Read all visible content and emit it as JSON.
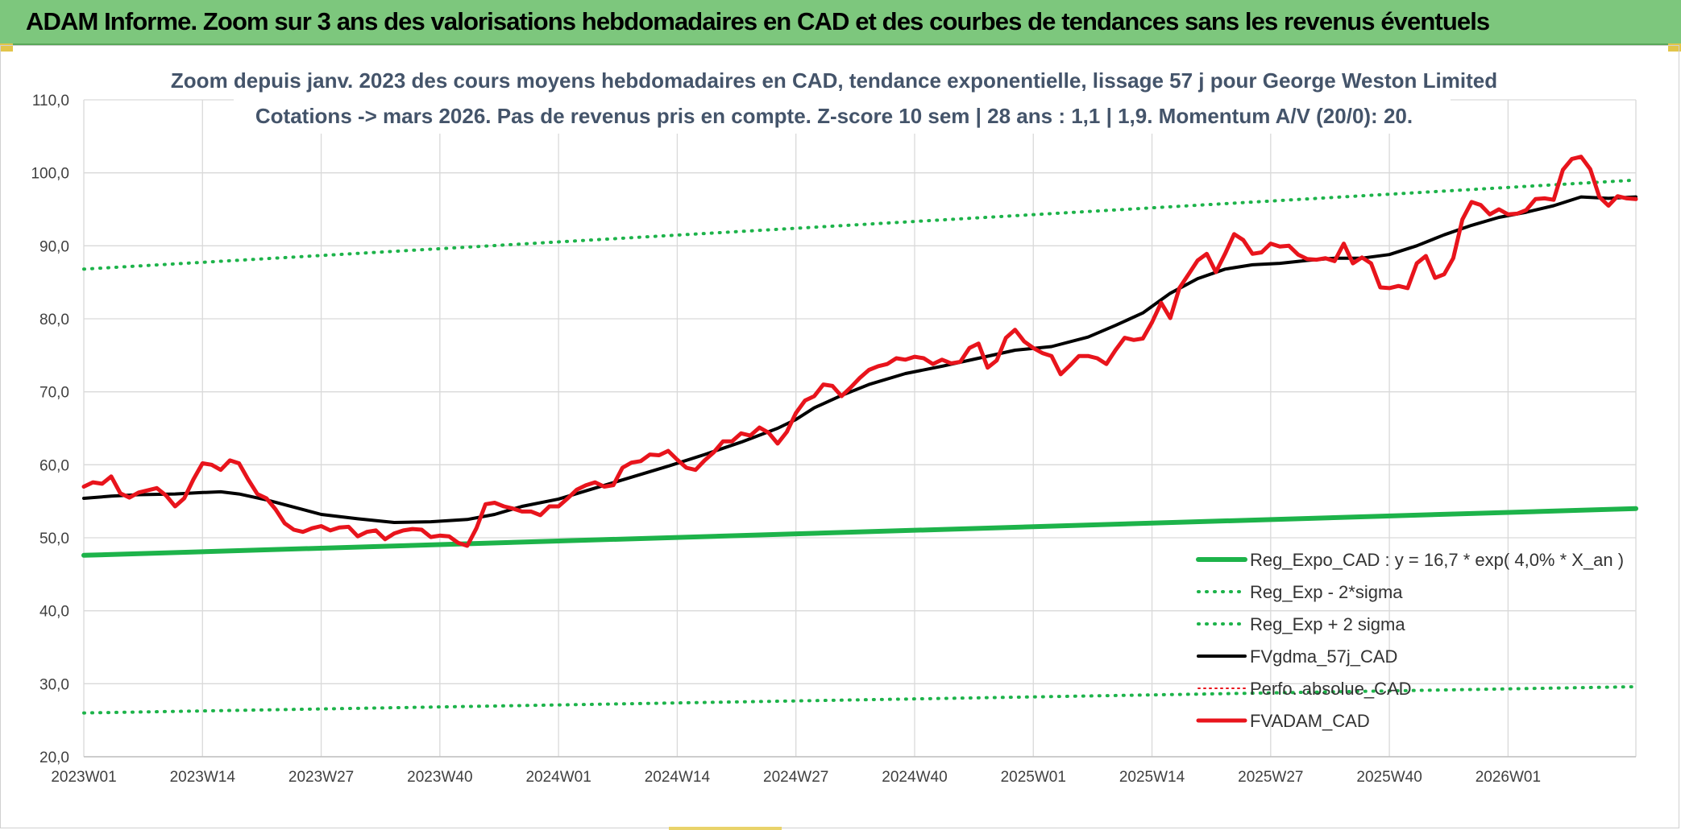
{
  "banner": {
    "title": "ADAM Informe. Zoom sur 3 ans des valorisations hebdomadaires en CAD et des courbes de tendances sans les revenus éventuels"
  },
  "chart_data": {
    "type": "line",
    "title": "Zoom depuis janv. 2023 des cours moyens hebdomadaires en CAD, tendance exponentielle, lissage 57 j pour George Weston Limited",
    "subtitle": "Cotations -> mars 2026. Pas de revenus pris en compte. Z-score 10 sem | 28 ans : 1,1 | 1,9. Momentum A/V (20/0): 20.",
    "xlabel": "",
    "ylabel": "",
    "ylim": [
      20,
      110
    ],
    "yticks": [
      "20,0",
      "30,0",
      "40,0",
      "50,0",
      "60,0",
      "70,0",
      "80,0",
      "90,0",
      "100,0",
      "110,0"
    ],
    "x_ticks": [
      "2023W01",
      "2023W14",
      "2023W27",
      "2023W40",
      "2024W01",
      "2024W14",
      "2024W27",
      "2024W40",
      "2025W01",
      "2025W14",
      "2025W27",
      "2025W40",
      "2026W01"
    ],
    "x_tick_index": [
      0,
      13,
      26,
      39,
      52,
      65,
      78,
      91,
      104,
      117,
      130,
      143,
      156
    ],
    "n_weeks": 171,
    "grid": true,
    "legend_position": "bottom-right",
    "series": [
      {
        "name": "Reg_Expo_CAD : y = 16,7 * exp( 4,0% *  X_an )",
        "color": "#1db34a",
        "style": "solid",
        "width": 6,
        "points": [
          [
            0,
            47.6
          ],
          [
            170,
            54.0
          ]
        ]
      },
      {
        "name": "Reg_Exp - 2*sigma",
        "color": "#1db34a",
        "style": "dotted",
        "width": 4,
        "points": [
          [
            0,
            26.0
          ],
          [
            170,
            29.6
          ]
        ]
      },
      {
        "name": "Reg_Exp + 2 sigma",
        "color": "#1db34a",
        "style": "dotted",
        "width": 4,
        "points": [
          [
            0,
            86.8
          ],
          [
            170,
            99.0
          ]
        ]
      },
      {
        "name": "FVgdma_57j_CAD",
        "color": "#000000",
        "style": "solid",
        "width": 4,
        "points": [
          [
            0,
            55.4
          ],
          [
            3,
            55.7
          ],
          [
            6,
            55.9
          ],
          [
            10,
            56.0
          ],
          [
            13,
            56.2
          ],
          [
            15,
            56.3
          ],
          [
            17,
            56.0
          ],
          [
            20,
            55.2
          ],
          [
            23,
            54.2
          ],
          [
            26,
            53.2
          ],
          [
            30,
            52.6
          ],
          [
            34,
            52.1
          ],
          [
            38,
            52.2
          ],
          [
            42,
            52.5
          ],
          [
            45,
            53.2
          ],
          [
            48,
            54.3
          ],
          [
            52,
            55.3
          ],
          [
            56,
            56.8
          ],
          [
            60,
            58.3
          ],
          [
            64,
            59.8
          ],
          [
            68,
            61.4
          ],
          [
            72,
            63.1
          ],
          [
            76,
            65.0
          ],
          [
            78,
            66.2
          ],
          [
            80,
            67.8
          ],
          [
            83,
            69.5
          ],
          [
            86,
            71.0
          ],
          [
            90,
            72.5
          ],
          [
            94,
            73.5
          ],
          [
            98,
            74.6
          ],
          [
            102,
            75.7
          ],
          [
            106,
            76.2
          ],
          [
            110,
            77.5
          ],
          [
            113,
            79.1
          ],
          [
            116,
            80.8
          ],
          [
            119,
            83.5
          ],
          [
            122,
            85.5
          ],
          [
            125,
            86.8
          ],
          [
            128,
            87.4
          ],
          [
            131,
            87.6
          ],
          [
            134,
            88.0
          ],
          [
            137,
            88.3
          ],
          [
            140,
            88.3
          ],
          [
            143,
            88.8
          ],
          [
            146,
            90.0
          ],
          [
            149,
            91.5
          ],
          [
            152,
            92.8
          ],
          [
            155,
            93.9
          ],
          [
            158,
            94.6
          ],
          [
            161,
            95.5
          ],
          [
            164,
            96.7
          ],
          [
            167,
            96.5
          ],
          [
            170,
            96.7
          ]
        ]
      },
      {
        "name": "Perfo. absolue_CAD",
        "color": "#e8141c",
        "style": "dotted",
        "width": 2,
        "points": []
      },
      {
        "name": "FVADAM_CAD",
        "color": "#e8141c",
        "style": "solid",
        "width": 5,
        "points": [
          [
            0,
            57.0
          ],
          [
            1,
            57.6
          ],
          [
            2,
            57.4
          ],
          [
            3,
            58.4
          ],
          [
            4,
            56.1
          ],
          [
            5,
            55.5
          ],
          [
            6,
            56.2
          ],
          [
            7,
            56.5
          ],
          [
            8,
            56.8
          ],
          [
            9,
            55.8
          ],
          [
            10,
            54.3
          ],
          [
            11,
            55.4
          ],
          [
            12,
            58.0
          ],
          [
            13,
            60.2
          ],
          [
            14,
            60.0
          ],
          [
            15,
            59.3
          ],
          [
            16,
            60.6
          ],
          [
            17,
            60.2
          ],
          [
            18,
            58.0
          ],
          [
            19,
            56.0
          ],
          [
            20,
            55.4
          ],
          [
            21,
            53.9
          ],
          [
            22,
            52.0
          ],
          [
            23,
            51.1
          ],
          [
            24,
            50.8
          ],
          [
            25,
            51.3
          ],
          [
            26,
            51.6
          ],
          [
            27,
            51.0
          ],
          [
            28,
            51.4
          ],
          [
            29,
            51.5
          ],
          [
            30,
            50.2
          ],
          [
            31,
            50.8
          ],
          [
            32,
            51.0
          ],
          [
            33,
            49.8
          ],
          [
            34,
            50.6
          ],
          [
            35,
            51.0
          ],
          [
            36,
            51.2
          ],
          [
            37,
            51.1
          ],
          [
            38,
            50.1
          ],
          [
            39,
            50.3
          ],
          [
            40,
            50.2
          ],
          [
            41,
            49.3
          ],
          [
            42,
            48.9
          ],
          [
            43,
            51.3
          ],
          [
            44,
            54.6
          ],
          [
            45,
            54.8
          ],
          [
            46,
            54.3
          ],
          [
            47,
            54.0
          ],
          [
            48,
            53.6
          ],
          [
            49,
            53.6
          ],
          [
            50,
            53.1
          ],
          [
            51,
            54.3
          ],
          [
            52,
            54.3
          ],
          [
            53,
            55.4
          ],
          [
            54,
            56.6
          ],
          [
            55,
            57.2
          ],
          [
            56,
            57.6
          ],
          [
            57,
            57.0
          ],
          [
            58,
            57.2
          ],
          [
            59,
            59.6
          ],
          [
            60,
            60.3
          ],
          [
            61,
            60.5
          ],
          [
            62,
            61.4
          ],
          [
            63,
            61.3
          ],
          [
            64,
            61.9
          ],
          [
            65,
            60.7
          ],
          [
            66,
            59.6
          ],
          [
            67,
            59.3
          ],
          [
            68,
            60.6
          ],
          [
            69,
            61.7
          ],
          [
            70,
            63.2
          ],
          [
            71,
            63.2
          ],
          [
            72,
            64.3
          ],
          [
            73,
            64.0
          ],
          [
            74,
            65.1
          ],
          [
            75,
            64.4
          ],
          [
            76,
            62.9
          ],
          [
            77,
            64.5
          ],
          [
            78,
            67.1
          ],
          [
            79,
            68.8
          ],
          [
            80,
            69.4
          ],
          [
            81,
            71.0
          ],
          [
            82,
            70.8
          ],
          [
            83,
            69.4
          ],
          [
            84,
            70.6
          ],
          [
            85,
            71.9
          ],
          [
            86,
            73.0
          ],
          [
            87,
            73.5
          ],
          [
            88,
            73.8
          ],
          [
            89,
            74.6
          ],
          [
            90,
            74.4
          ],
          [
            91,
            74.8
          ],
          [
            92,
            74.6
          ],
          [
            93,
            73.8
          ],
          [
            94,
            74.4
          ],
          [
            95,
            73.9
          ],
          [
            96,
            74.1
          ],
          [
            97,
            76.0
          ],
          [
            98,
            76.6
          ],
          [
            99,
            73.3
          ],
          [
            100,
            74.3
          ],
          [
            101,
            77.4
          ],
          [
            102,
            78.5
          ],
          [
            103,
            76.9
          ],
          [
            104,
            76.0
          ],
          [
            105,
            75.3
          ],
          [
            106,
            74.9
          ],
          [
            107,
            72.4
          ],
          [
            108,
            73.6
          ],
          [
            109,
            74.9
          ],
          [
            110,
            74.9
          ],
          [
            111,
            74.6
          ],
          [
            112,
            73.8
          ],
          [
            113,
            75.7
          ],
          [
            114,
            77.4
          ],
          [
            115,
            77.1
          ],
          [
            116,
            77.3
          ],
          [
            117,
            79.5
          ],
          [
            118,
            82.2
          ],
          [
            119,
            80.1
          ],
          [
            120,
            84.2
          ],
          [
            121,
            86.1
          ],
          [
            122,
            88.0
          ],
          [
            123,
            88.9
          ],
          [
            124,
            86.4
          ],
          [
            125,
            88.9
          ],
          [
            126,
            91.6
          ],
          [
            127,
            90.8
          ],
          [
            128,
            88.9
          ],
          [
            129,
            89.1
          ],
          [
            130,
            90.3
          ],
          [
            131,
            89.9
          ],
          [
            132,
            90.0
          ],
          [
            133,
            88.8
          ],
          [
            134,
            88.2
          ],
          [
            135,
            88.1
          ],
          [
            136,
            88.3
          ],
          [
            137,
            87.9
          ],
          [
            138,
            90.3
          ],
          [
            139,
            87.6
          ],
          [
            140,
            88.4
          ],
          [
            141,
            87.6
          ],
          [
            142,
            84.3
          ],
          [
            143,
            84.2
          ],
          [
            144,
            84.5
          ],
          [
            145,
            84.2
          ],
          [
            146,
            87.6
          ],
          [
            147,
            88.6
          ],
          [
            148,
            85.6
          ],
          [
            149,
            86.1
          ],
          [
            150,
            88.3
          ],
          [
            151,
            93.6
          ],
          [
            152,
            96.0
          ],
          [
            153,
            95.6
          ],
          [
            154,
            94.3
          ],
          [
            155,
            95.0
          ],
          [
            156,
            94.3
          ],
          [
            157,
            94.4
          ],
          [
            158,
            94.9
          ],
          [
            159,
            96.4
          ],
          [
            160,
            96.5
          ],
          [
            161,
            96.3
          ],
          [
            162,
            100.4
          ],
          [
            163,
            101.9
          ],
          [
            164,
            102.2
          ],
          [
            165,
            100.5
          ],
          [
            166,
            96.7
          ],
          [
            167,
            95.5
          ],
          [
            168,
            96.8
          ],
          [
            169,
            96.5
          ],
          [
            170,
            96.4
          ]
        ]
      }
    ]
  },
  "colors": {
    "banner": "#7dc77d",
    "regression": "#1db34a",
    "smoothed": "#000000",
    "price": "#e8141c",
    "title_text": "#44546a"
  }
}
